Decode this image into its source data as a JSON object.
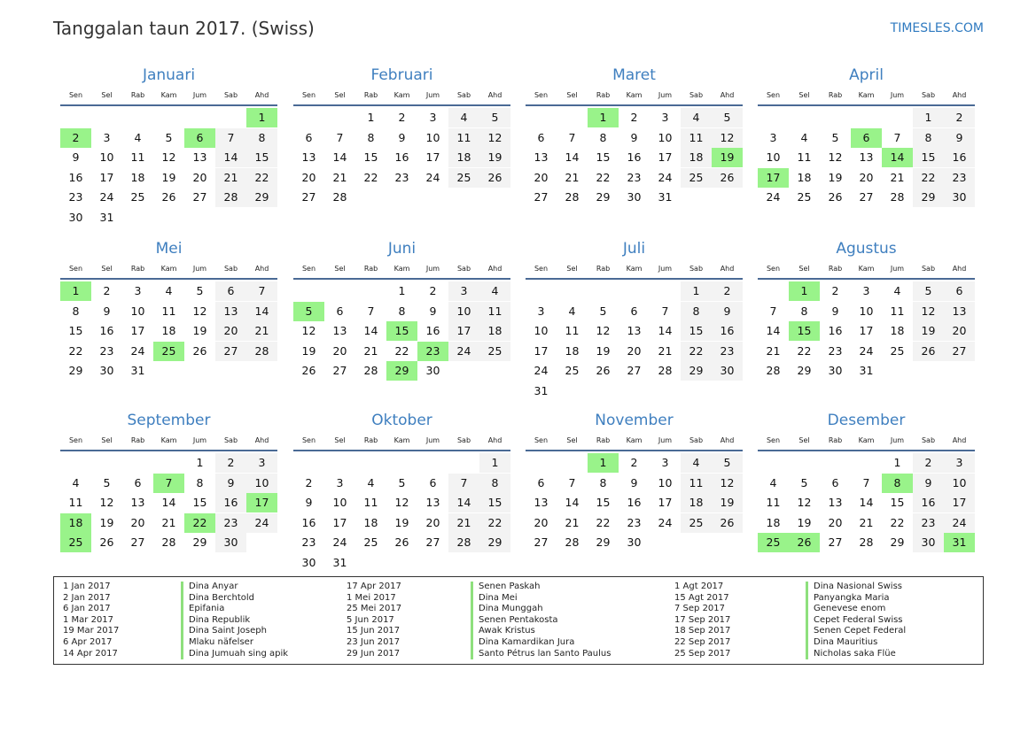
{
  "header": {
    "title": "Tanggalan taun 2017. (Swiss)",
    "brand": "TIMESLES.COM"
  },
  "year": 2017,
  "weekdays": [
    "Sen",
    "Sel",
    "Rab",
    "Kam",
    "Jum",
    "Sab",
    "Ahd"
  ],
  "colors": {
    "holiday": "#99f38a",
    "weekend": "#f3f3f3",
    "month_title": "#3f7fbf"
  },
  "months": [
    {
      "name": "Januari",
      "holidays": [
        1,
        2,
        6
      ]
    },
    {
      "name": "Februari",
      "holidays": []
    },
    {
      "name": "Maret",
      "holidays": [
        1,
        19
      ]
    },
    {
      "name": "April",
      "holidays": [
        6,
        14,
        17
      ]
    },
    {
      "name": "Mei",
      "holidays": [
        1,
        25
      ]
    },
    {
      "name": "Juni",
      "holidays": [
        5,
        15,
        23,
        29
      ]
    },
    {
      "name": "Juli",
      "holidays": []
    },
    {
      "name": "Agustus",
      "holidays": [
        1,
        15
      ]
    },
    {
      "name": "September",
      "holidays": [
        7,
        17,
        18,
        22,
        25
      ]
    },
    {
      "name": "Oktober",
      "holidays": []
    },
    {
      "name": "November",
      "holidays": [
        1
      ]
    },
    {
      "name": "Desember",
      "holidays": [
        8,
        25,
        26,
        31
      ]
    }
  ],
  "holiday_list": [
    {
      "date": "1 Jan 2017",
      "name": "Dina Anyar"
    },
    {
      "date": "2 Jan 2017",
      "name": "Dina Berchtold"
    },
    {
      "date": "6 Jan 2017",
      "name": "Epifania"
    },
    {
      "date": "1 Mar 2017",
      "name": "Dina Republik"
    },
    {
      "date": "19 Mar 2017",
      "name": "Dina Saint Joseph"
    },
    {
      "date": "6 Apr 2017",
      "name": "Mlaku näfelser"
    },
    {
      "date": "14 Apr 2017",
      "name": "Dina Jumuah sing apik"
    },
    {
      "date": "17 Apr 2017",
      "name": "Senen Paskah"
    },
    {
      "date": "1 Mei 2017",
      "name": "Dina Mei"
    },
    {
      "date": "25 Mei 2017",
      "name": "Dina Munggah"
    },
    {
      "date": "5 Jun 2017",
      "name": "Senen Pentakosta"
    },
    {
      "date": "15 Jun 2017",
      "name": "Awak Kristus"
    },
    {
      "date": "23 Jun 2017",
      "name": "Dina Kamardikan Jura"
    },
    {
      "date": "29 Jun 2017",
      "name": "Santo Pétrus lan Santo Paulus"
    },
    {
      "date": "1 Agt 2017",
      "name": "Dina Nasional Swiss"
    },
    {
      "date": "15 Agt 2017",
      "name": "Panyangka Maria"
    },
    {
      "date": "7 Sep 2017",
      "name": "Genevese enom"
    },
    {
      "date": "17 Sep 2017",
      "name": "Cepet Federal Swiss"
    },
    {
      "date": "18 Sep 2017",
      "name": "Senen Cepet Federal"
    },
    {
      "date": "22 Sep 2017",
      "name": "Dina Mauritius"
    },
    {
      "date": "25 Sep 2017",
      "name": "Nicholas saka Flüe"
    }
  ]
}
